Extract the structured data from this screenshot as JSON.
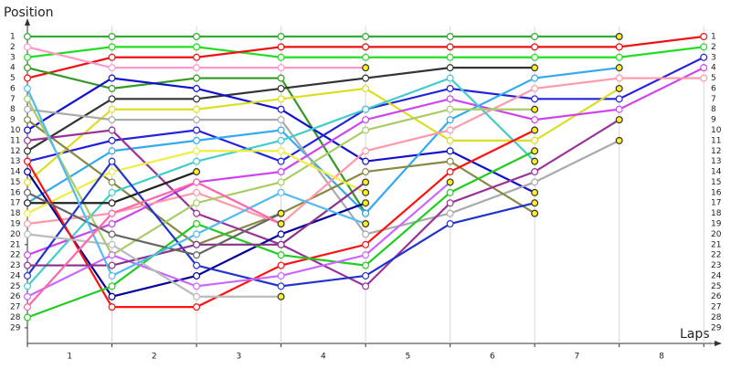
{
  "chart_data": {
    "type": "line",
    "y_axis_label": "Position",
    "x_axis_label": "Laps",
    "x": [
      0,
      1,
      2,
      3,
      4,
      5,
      6,
      7,
      8
    ],
    "xlim": [
      0,
      8.16
    ],
    "ylim": [
      0,
      30.5
    ],
    "y_inverted": true,
    "xticks": [
      {
        "value": 0.5,
        "label": "1"
      },
      {
        "value": 1.5,
        "label": "2"
      },
      {
        "value": 2.5,
        "label": "3"
      },
      {
        "value": 3.5,
        "label": "4"
      },
      {
        "value": 4.5,
        "label": "5"
      },
      {
        "value": 5.5,
        "label": "6"
      },
      {
        "value": 6.5,
        "label": "7"
      },
      {
        "value": 7.5,
        "label": "8"
      }
    ],
    "yticks": [
      1,
      2,
      3,
      4,
      5,
      6,
      7,
      8,
      9,
      10,
      11,
      12,
      13,
      14,
      15,
      16,
      17,
      18,
      19,
      20,
      21,
      22,
      23,
      24,
      25,
      26,
      27,
      28,
      29
    ],
    "grid": true,
    "marker_fill": "#ffffff",
    "retired_marker_color": "#ffee22",
    "series": [
      {
        "color": "#33aa33",
        "values": [
          1,
          1,
          1,
          1,
          1,
          1,
          1,
          1,
          null
        ]
      },
      {
        "color": "#22dd22",
        "values": [
          3,
          2,
          2,
          3,
          3,
          3,
          3,
          3,
          2
        ]
      },
      {
        "color": "#ee1111",
        "values": [
          5,
          3,
          3,
          2,
          2,
          2,
          2,
          2,
          1
        ]
      },
      {
        "color": "#ff99cc",
        "values": [
          2,
          4,
          4,
          4,
          4,
          null,
          null,
          null,
          null
        ]
      },
      {
        "color": "#339922",
        "values": [
          4,
          6,
          5,
          5,
          18,
          null,
          null,
          null,
          null
        ]
      },
      {
        "color": "#333333",
        "values": [
          12,
          7,
          7,
          6,
          5,
          4,
          4,
          null,
          null
        ]
      },
      {
        "color": "#1111cc",
        "values": [
          10,
          5,
          6,
          8,
          13,
          12,
          16,
          null,
          null
        ]
      },
      {
        "color": "#2222dd",
        "values": [
          13,
          11,
          10,
          13,
          8,
          6,
          7,
          7,
          3
        ]
      },
      {
        "color": "#33aaee",
        "values": [
          17,
          12,
          11,
          10,
          18,
          9,
          5,
          4,
          null
        ]
      },
      {
        "color": "#dddd22",
        "values": [
          15,
          8,
          8,
          7,
          6,
          11,
          11,
          6,
          null
        ]
      },
      {
        "color": "#aaaaaa",
        "values": [
          8,
          9,
          9,
          9,
          20,
          18,
          15,
          11,
          null
        ]
      },
      {
        "color": "#888844",
        "values": [
          9,
          15,
          21,
          18,
          14,
          13,
          18,
          null,
          null
        ]
      },
      {
        "color": "#cc44ee",
        "values": [
          22,
          19,
          15,
          14,
          9,
          7,
          9,
          8,
          4
        ]
      },
      {
        "color": "#ff99aa",
        "values": [
          19,
          18,
          16,
          19,
          12,
          10,
          6,
          5,
          5
        ]
      },
      {
        "color": "#993399",
        "values": [
          11,
          10,
          18,
          21,
          25,
          17,
          14,
          9,
          null
        ]
      },
      {
        "color": "#44cccc",
        "values": [
          25,
          16,
          13,
          11,
          8,
          5,
          13,
          null,
          null
        ]
      },
      {
        "color": "#aacc66",
        "values": [
          7,
          22,
          17,
          15,
          10,
          8,
          8,
          null,
          null
        ]
      },
      {
        "color": "#222222",
        "values": [
          17,
          17,
          14,
          null,
          null,
          null,
          null,
          null,
          null
        ]
      },
      {
        "color": "#eeee44",
        "values": [
          18,
          14,
          12,
          12,
          16,
          null,
          null,
          null,
          null
        ]
      },
      {
        "color": "#000099",
        "values": [
          14,
          26,
          24,
          20,
          17,
          null,
          null,
          null,
          null
        ]
      },
      {
        "color": "#ff1111",
        "values": [
          13,
          27,
          27,
          23,
          21,
          14,
          10,
          null,
          null
        ]
      },
      {
        "color": "#22cc22",
        "values": [
          28,
          25,
          19,
          22,
          23,
          16,
          12,
          null,
          null
        ]
      },
      {
        "color": "#2233cc",
        "values": [
          24,
          13,
          23,
          25,
          24,
          19,
          17,
          null,
          null
        ]
      },
      {
        "color": "#cc66ff",
        "values": [
          26,
          22,
          25,
          24,
          22,
          15,
          null,
          null,
          null
        ]
      },
      {
        "color": "#883388",
        "values": [
          23,
          23,
          21,
          21,
          15,
          null,
          null,
          null,
          null
        ]
      },
      {
        "color": "#bbbbbb",
        "values": [
          20,
          21,
          26,
          26,
          null,
          null,
          null,
          null,
          null
        ]
      },
      {
        "color": "#666666",
        "values": [
          16,
          20,
          22,
          18,
          null,
          null,
          null,
          null,
          null
        ]
      },
      {
        "color": "#55bbee",
        "values": [
          6,
          24,
          20,
          16,
          19,
          null,
          null,
          null,
          null
        ]
      },
      {
        "color": "#ff66aa",
        "values": [
          27,
          18,
          15,
          19,
          null,
          null,
          null,
          null,
          null
        ]
      }
    ]
  }
}
